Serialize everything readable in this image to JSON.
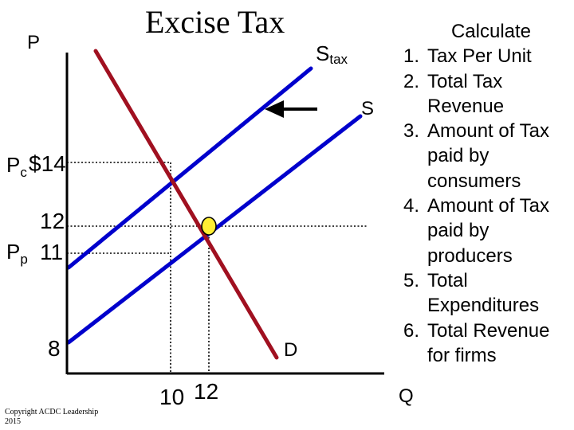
{
  "title": "Excise Tax",
  "axes": {
    "y_label": "P",
    "x_label": "Q"
  },
  "curves": {
    "supply_tax_label": "S",
    "supply_tax_sub": "tax",
    "supply_label": "S",
    "demand_label": "D"
  },
  "y_ticks": {
    "pc_letter": "P",
    "pc_sub": "c",
    "pc_value": "$14",
    "equilibrium_value": "12",
    "pp_letter": "P",
    "pp_sub": "p",
    "pp_value": "11",
    "low_value": "8"
  },
  "x_ticks": {
    "tax_quantity": "10",
    "equilibrium_quantity": "12"
  },
  "calculate": {
    "title": "Calculate",
    "items": [
      {
        "num": "1.",
        "text": "Tax Per Unit"
      },
      {
        "num": "2.",
        "text": "Total Tax Revenue"
      },
      {
        "num": "3.",
        "text": "Amount of Tax paid by consumers"
      },
      {
        "num": "4.",
        "text": "Amount of Tax paid by producers"
      },
      {
        "num": "5.",
        "text": "Total Expenditures"
      },
      {
        "num": "6.",
        "text": "Total Revenue for firms"
      }
    ]
  },
  "copyright": "Copyright ACDC Leadership 2015",
  "colors": {
    "supply": "#0000cc",
    "demand": "#a01020",
    "equilibrium": "#ffee33",
    "axis": "#000000",
    "arrow": "#000000"
  },
  "equilibrium_point": {
    "quantity": 12,
    "price": 12
  }
}
